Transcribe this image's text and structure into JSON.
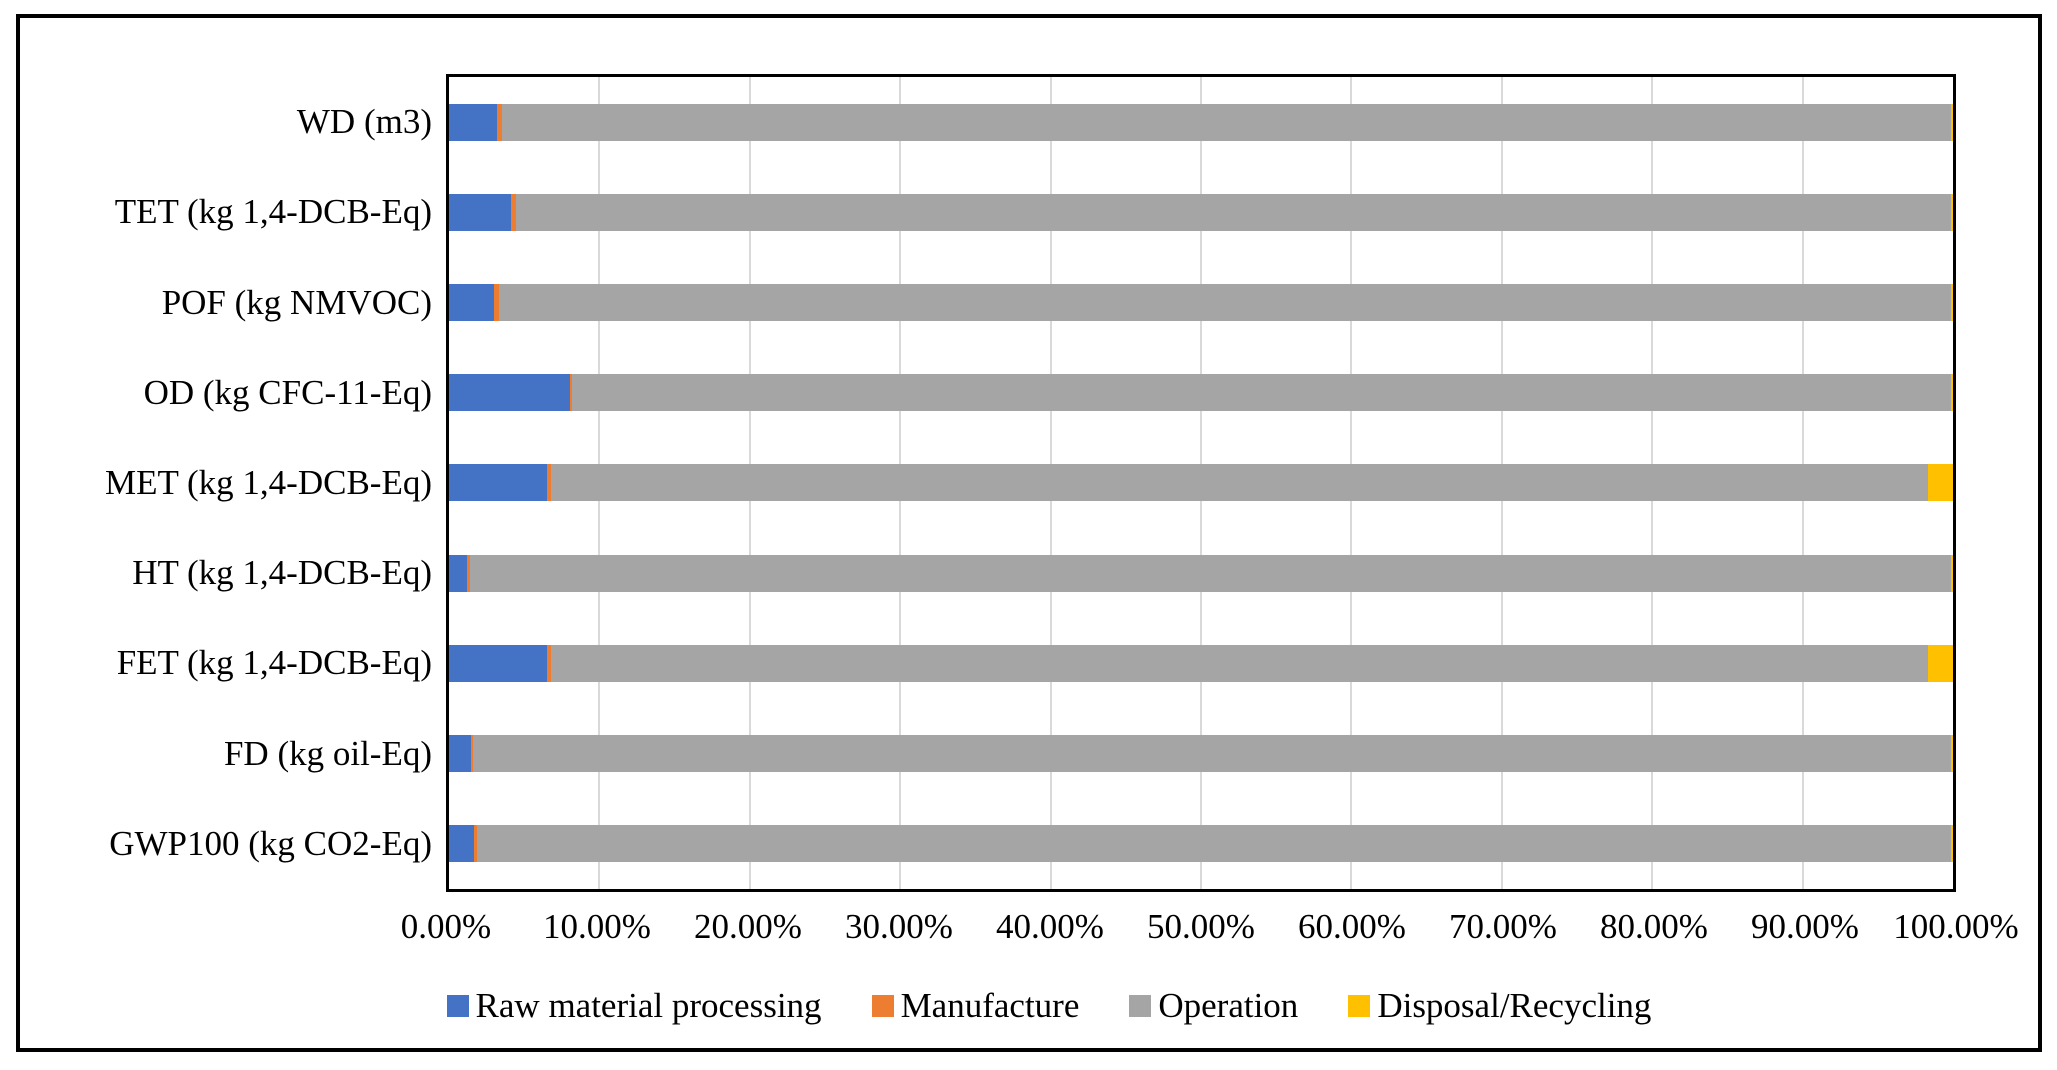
{
  "chart_data": {
    "type": "bar",
    "orientation": "horizontal",
    "stacked": true,
    "stacked_total_percent": 100,
    "title": "",
    "categories_top_to_bottom": [
      "WD (m3)",
      "TET (kg 1,4-DCB-Eq)",
      "POF (kg NMVOC)",
      "OD (kg CFC-11-Eq)",
      "MET (kg 1,4-DCB-Eq)",
      "HT (kg 1,4-DCB-Eq)",
      "FET (kg 1,4-DCB-Eq)",
      "FD (kg oil-Eq)",
      "GWP100 (kg CO2-Eq)"
    ],
    "series": [
      {
        "name": "Raw material processing",
        "color": "#4472C4",
        "values": [
          3.2,
          4.1,
          3.0,
          8.05,
          6.5,
          1.2,
          6.5,
          1.43,
          1.63
        ]
      },
      {
        "name": "Manufacture",
        "color": "#ED7D31",
        "values": [
          0.35,
          0.33,
          0.33,
          0.13,
          0.25,
          0.2,
          0.25,
          0.18,
          0.2
        ]
      },
      {
        "name": "Operation",
        "color": "#A5A5A5",
        "values": [
          96.35,
          95.47,
          96.57,
          91.72,
          91.6,
          98.5,
          91.6,
          98.29,
          98.07
        ]
      },
      {
        "name": "Disposal/Recycling",
        "color": "#FFC000",
        "values": [
          0.1,
          0.1,
          0.1,
          0.1,
          1.65,
          0.1,
          1.65,
          0.1,
          0.1
        ]
      }
    ],
    "x_axis": {
      "min": 0,
      "max": 100,
      "tick_step": 10,
      "tick_labels": [
        "0.00%",
        "10.00%",
        "20.00%",
        "30.00%",
        "40.00%",
        "50.00%",
        "60.00%",
        "70.00%",
        "80.00%",
        "90.00%",
        "100.00%"
      ]
    },
    "grid": true,
    "legend_position": "bottom"
  },
  "colors": {
    "gridline": "#D9D9D9",
    "axis_border": "#000000",
    "background": "#FFFFFF"
  }
}
